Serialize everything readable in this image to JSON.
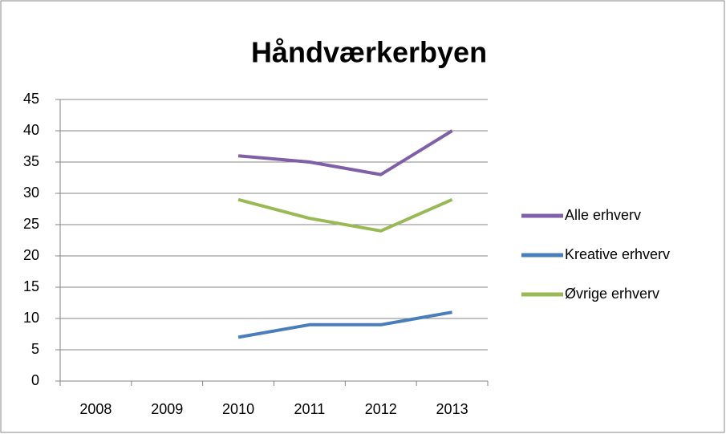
{
  "chart_data": {
    "type": "line",
    "title": "Håndværkerbyen",
    "categories": [
      "2008",
      "2009",
      "2010",
      "2011",
      "2012",
      "2013"
    ],
    "series": [
      {
        "name": "Alle erhverv",
        "color": "#7f5fa8",
        "values": [
          null,
          null,
          36,
          35,
          33,
          40
        ]
      },
      {
        "name": "Kreative erhverv",
        "color": "#4a7ebb",
        "values": [
          null,
          null,
          7,
          9,
          9,
          11
        ]
      },
      {
        "name": "Øvrige erhverv",
        "color": "#98b954",
        "values": [
          null,
          null,
          29,
          26,
          24,
          29
        ]
      }
    ],
    "ylim": [
      0,
      45
    ],
    "yticks": [
      0,
      5,
      10,
      15,
      20,
      25,
      30,
      35,
      40,
      45
    ],
    "grid": true,
    "legend": "right"
  }
}
